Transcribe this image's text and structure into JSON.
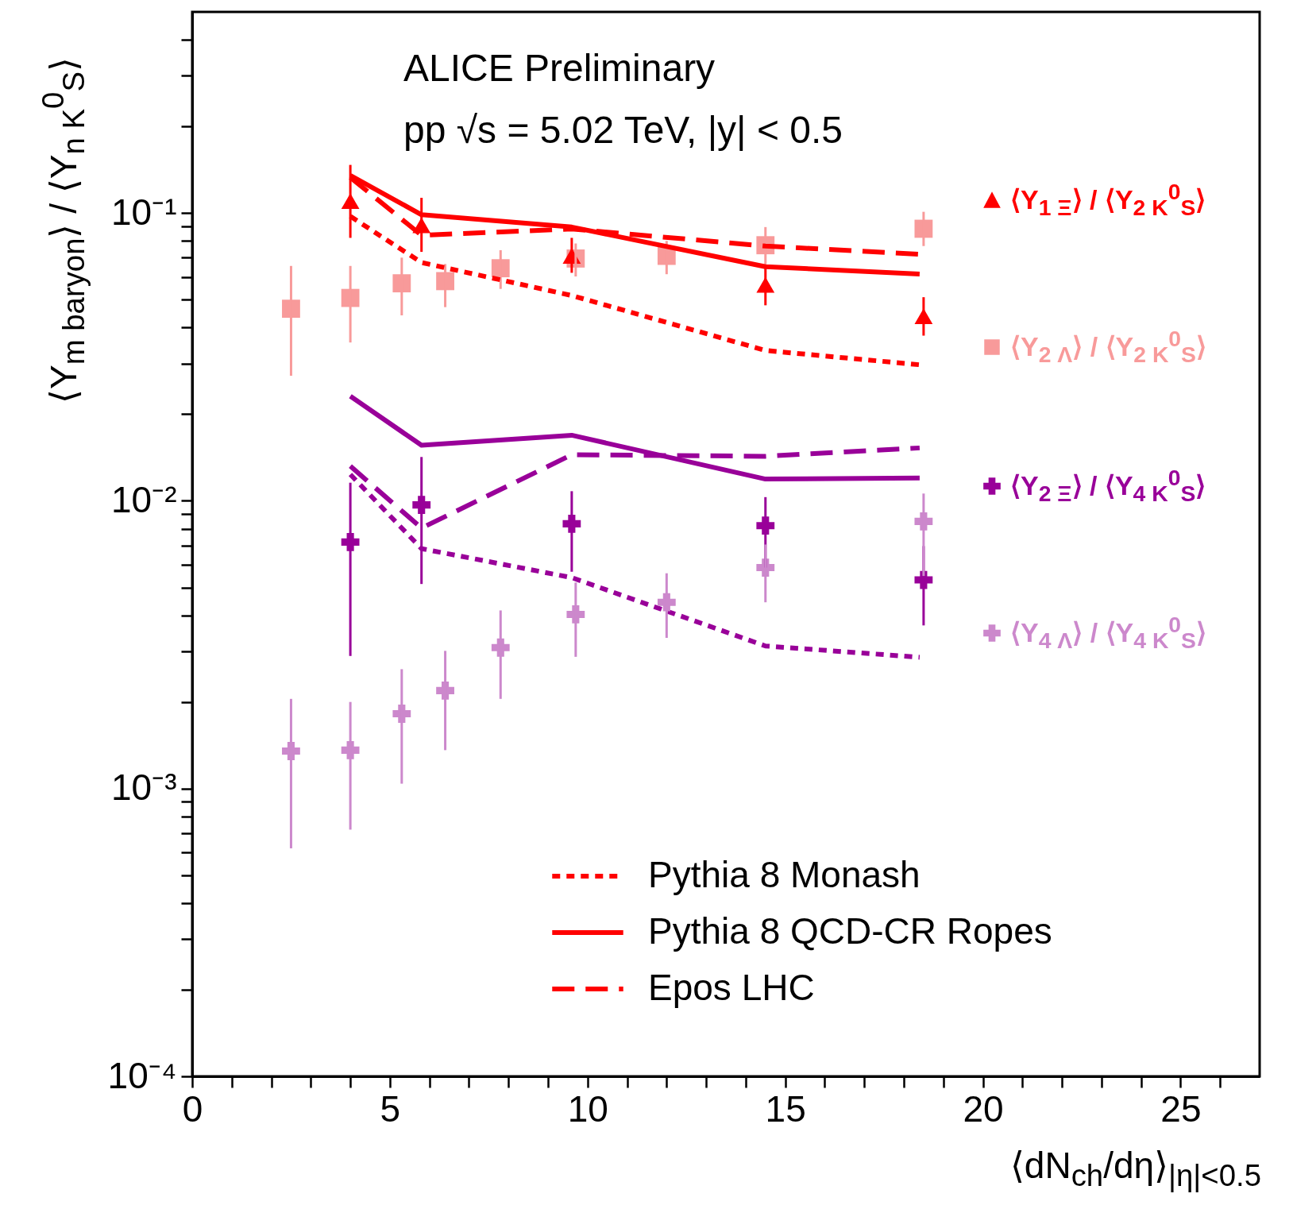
{
  "chart_data": {
    "type": "scatter",
    "xlabel": "⟨dN$_{ch}$/dη⟩$_{|η|<0.5}$",
    "ylabel": "⟨Y$_{m baryon}$⟩ / ⟨Y$_{n K}$$^{0}$$_{S}$⟩",
    "annotations": [
      "ALICE Preliminary",
      "pp √s = 5.02 TeV, |y| < 0.5"
    ],
    "log": true,
    "legend": "right",
    "xlim": [
      0,
      27
    ],
    "ylim": [
      0.0001,
      0.5
    ],
    "xticks": [
      0,
      {
        "value": 1,
        "label": null
      },
      {
        "value": 2,
        "label": null
      },
      {
        "value": 3,
        "label": null
      },
      {
        "value": 4,
        "label": null
      },
      5,
      {
        "value": 6,
        "label": null
      },
      {
        "value": 7,
        "label": null
      },
      {
        "value": 8,
        "label": null
      },
      {
        "value": 9,
        "label": null
      },
      10,
      {
        "value": 11,
        "label": null
      },
      {
        "value": 12,
        "label": null
      },
      {
        "value": 13,
        "label": null
      },
      {
        "value": 14,
        "label": null
      },
      15,
      {
        "value": 16,
        "label": null
      },
      {
        "value": 17,
        "label": null
      },
      {
        "value": 18,
        "label": null
      },
      {
        "value": 19,
        "label": null
      },
      20,
      {
        "value": 21,
        "label": null
      },
      {
        "value": 22,
        "label": null
      },
      {
        "value": 23,
        "label": null
      },
      {
        "value": 24,
        "label": null
      },
      25,
      {
        "value": 26,
        "label": null
      }
    ],
    "yticks": [
      {
        "value": 0.0001,
        "label": "10⁻⁴"
      },
      {
        "value": 0.0002,
        "label": null
      },
      {
        "value": 0.0003,
        "label": null
      },
      {
        "value": 0.0004,
        "label": null
      },
      {
        "value": 0.0005,
        "label": null
      },
      {
        "value": 0.0006,
        "label": null
      },
      {
        "value": 0.0007,
        "label": null
      },
      {
        "value": 0.0008,
        "label": null
      },
      {
        "value": 0.0009,
        "label": null
      },
      {
        "value": 0.001,
        "label": "10⁻³"
      },
      {
        "value": 0.002,
        "label": null
      },
      {
        "value": 0.003,
        "label": null
      },
      {
        "value": 0.004,
        "label": null
      },
      {
        "value": 0.005,
        "label": null
      },
      {
        "value": 0.006,
        "label": null
      },
      {
        "value": 0.007,
        "label": null
      },
      {
        "value": 0.008,
        "label": null
      },
      {
        "value": 0.009,
        "label": null
      },
      {
        "value": 0.01,
        "label": "10⁻²"
      },
      {
        "value": 0.02,
        "label": null
      },
      {
        "value": 0.03,
        "label": null
      },
      {
        "value": 0.04,
        "label": null
      },
      {
        "value": 0.05,
        "label": null
      },
      {
        "value": 0.06,
        "label": null
      },
      {
        "value": 0.07,
        "label": null
      },
      {
        "value": 0.08,
        "label": null
      },
      {
        "value": 0.09,
        "label": null
      },
      {
        "value": 0.1,
        "label": "10⁻¹"
      },
      {
        "value": 0.2,
        "label": null
      },
      {
        "value": 0.3,
        "label": null
      },
      {
        "value": 0.4,
        "label": null
      }
    ],
    "series": [
      {
        "name": "⟨Y$_{1 Ξ}$⟩ / ⟨Y$_{2 K}$$^{0}$$_{S}$⟩",
        "marker": "triangle",
        "color": "#ff0000",
        "x": [
          4.0,
          5.8,
          9.6,
          14.5,
          18.5
        ],
        "values": [
          0.11,
          0.0906,
          0.071,
          0.0563,
          0.0438
        ],
        "errors": [
          [
            0.082,
            0.147
          ],
          [
            0.0733,
            0.113
          ],
          [
            0.062,
            0.082
          ],
          [
            0.0478,
            0.0656
          ],
          [
            0.0375,
            0.051
          ]
        ]
      },
      {
        "name": "⟨Y$_{2 Λ}$⟩ / ⟨Y$_{2 K}$$^{0}$$_{S}$⟩",
        "marker": "square",
        "color": "#f89a9a",
        "x": [
          2.5,
          4.0,
          5.3,
          6.4,
          7.8,
          9.7,
          12.0,
          14.5,
          18.5
        ],
        "values": [
          0.0465,
          0.0507,
          0.057,
          0.058,
          0.0643,
          0.0695,
          0.071,
          0.0773,
          0.0882
        ],
        "errors": [
          [
            0.0272,
            0.0655
          ],
          [
            0.0355,
            0.0655
          ],
          [
            0.0441,
            0.07
          ],
          [
            0.0471,
            0.0665
          ],
          [
            0.0545,
            0.0743
          ],
          [
            0.0602,
            0.0784
          ],
          [
            0.0613,
            0.08
          ],
          [
            0.0643,
            0.0894
          ],
          [
            0.0768,
            0.101
          ]
        ]
      },
      {
        "name": "⟨Y$_{2 Ξ}$⟩ / ⟨Y$_{4 K}$$^{0}$$_{S}$⟩",
        "marker": "cross",
        "color": "#990099",
        "x": [
          4.0,
          5.8,
          9.6,
          14.5,
          18.5
        ],
        "values": [
          0.00719,
          0.00968,
          0.00832,
          0.0082,
          0.00531
        ],
        "errors": [
          [
            0.00289,
            0.01156
          ],
          [
            0.00514,
            0.0142
          ],
          [
            0.00567,
            0.0108
          ],
          [
            0.00586,
            0.0103
          ],
          [
            0.00369,
            0.00696
          ]
        ]
      },
      {
        "name": "⟨Y$_{4 Λ}$⟩ / ⟨Y$_{4 K}$$^{0}$$_{S}$⟩",
        "marker": "cross",
        "color": "#cc88cc",
        "x": [
          2.5,
          4.0,
          5.3,
          6.4,
          7.8,
          9.7,
          12.0,
          14.5,
          18.5
        ],
        "values": [
          0.00135,
          0.00136,
          0.00182,
          0.00219,
          0.00309,
          0.00403,
          0.00444,
          0.00586,
          0.00848
        ],
        "errors": [
          [
            0.00062,
            0.00205
          ],
          [
            0.00072,
            0.002
          ],
          [
            0.00104,
            0.0026
          ],
          [
            0.00136,
            0.00301
          ],
          [
            0.00205,
            0.00416
          ],
          [
            0.00287,
            0.0052
          ],
          [
            0.00334,
            0.0056
          ],
          [
            0.00444,
            0.00705
          ],
          [
            0.00548,
            0.0106
          ]
        ]
      },
      {
        "name": "Pythia 8 Monash",
        "type": "line",
        "line_style": "dotted",
        "color": "#ff0000",
        "x": [
          4.0,
          5.8,
          9.6,
          14.5,
          18.4
        ],
        "values": [
          0.0974,
          0.0673,
          0.0517,
          0.0333,
          0.0297
        ]
      },
      {
        "name": "Pythia 8 QCD-CR Ropes",
        "type": "line",
        "line_style": "solid",
        "color": "#ff0000",
        "x": [
          4.0,
          5.8,
          9.6,
          14.5,
          18.4
        ],
        "values": [
          0.135,
          0.0987,
          0.0894,
          0.0651,
          0.0614
        ]
      },
      {
        "name": "Epos LHC",
        "type": "line",
        "line_style": "dashed",
        "color": "#ff0000",
        "x": [
          4.0,
          5.8,
          9.6,
          14.5,
          18.4
        ],
        "values": [
          0.133,
          0.0837,
          0.088,
          0.0768,
          0.0719
        ]
      },
      {
        "type": "line",
        "line_style": "dotted",
        "color": "#990099",
        "x": [
          4.0,
          5.8,
          9.6,
          14.5,
          18.4
        ],
        "values": [
          0.01235,
          0.00682,
          0.00541,
          0.00313,
          0.00286
        ]
      },
      {
        "type": "line",
        "line_style": "solid",
        "color": "#990099",
        "x": [
          4.0,
          5.8,
          9.6,
          14.5,
          18.4
        ],
        "values": [
          0.0231,
          0.0156,
          0.0169,
          0.0119,
          0.012
        ]
      },
      {
        "type": "line",
        "line_style": "dashed",
        "color": "#990099",
        "x": [
          4.0,
          5.8,
          9.6,
          14.5,
          18.4
        ],
        "values": [
          0.0132,
          0.00804,
          0.01446,
          0.01428,
          0.01527
        ]
      }
    ]
  }
}
